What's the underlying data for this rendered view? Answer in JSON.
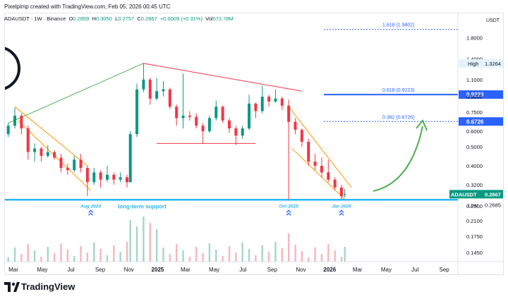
{
  "header": {
    "attribution": "Pixelpimp created with TradingView.com, Feb 05, 2026 00:45 UTC"
  },
  "symbol_bar": {
    "symbol": "ADAUSDT · 1W · Binance",
    "open_label": "O",
    "open": "0.2859",
    "high_label": "H",
    "high": "0.3050",
    "low_label": "L",
    "low": "0.2757",
    "close_label": "C",
    "close": "0.2867",
    "change": "+0.0009 (+0.31%)",
    "vol_label": "Vol",
    "volume": "571.78M"
  },
  "price_axis": {
    "unit": "USDT",
    "ticks": [
      "1.8000",
      "1.4000",
      "1.1000",
      "0.9000",
      "0.7500",
      "0.6000",
      "0.5000",
      "0.4000",
      "0.3200",
      "0.2500",
      "0.2100",
      "0.1750",
      "0.1450"
    ],
    "high_label": "High",
    "high_value": "1.3264",
    "low_label": "Low",
    "low_value": "0.2685",
    "last_symbol": "ADAUSDT",
    "last_value": "0.2867",
    "fib_0_618_value": "0.9223",
    "fib_0_382_value": "0.6726"
  },
  "time_axis": {
    "labels": [
      "Mar",
      "May",
      "Jul",
      "Sep",
      "Nov",
      "2025",
      "Mar",
      "May",
      "Jul",
      "Sep",
      "Nov",
      "2026",
      "Mar",
      "May",
      "Jul",
      "Sep"
    ]
  },
  "annotations": {
    "fib_1618": "1.618 (1.9802)",
    "fib_0618": "0.618 (0.9223)",
    "fib_0382": "0.382 (0.6726)",
    "support_text": "long-term support",
    "touch_1": "Aug 2024",
    "touch_2": "Oct 2025",
    "touch_3": "Jan 2026"
  },
  "footer": {
    "brand": "TradingView"
  },
  "colors": {
    "up": "#089981",
    "down": "#f23645",
    "support": "#29b6f6",
    "fib": "#2962ff",
    "wedge": "#ff9800",
    "triangle_top": "#f23645",
    "uptrend": "#4caf50"
  },
  "chart_data": {
    "type": "candlestick",
    "scale": "log",
    "ylim": [
      0.13,
      2.2
    ],
    "xlim": [
      "2024-02-12",
      "2026-09-30"
    ],
    "series": [
      {
        "name": "ADAUSDT",
        "candles": [
          {
            "t": "2024-02-19",
            "o": 0.58,
            "h": 0.66,
            "l": 0.56,
            "c": 0.64
          },
          {
            "t": "2024-03-04",
            "o": 0.64,
            "h": 0.79,
            "l": 0.62,
            "c": 0.72
          },
          {
            "t": "2024-03-18",
            "o": 0.72,
            "h": 0.74,
            "l": 0.58,
            "c": 0.62
          },
          {
            "t": "2024-04-01",
            "o": 0.62,
            "h": 0.64,
            "l": 0.43,
            "c": 0.47
          },
          {
            "t": "2024-04-15",
            "o": 0.47,
            "h": 0.52,
            "l": 0.42,
            "c": 0.49
          },
          {
            "t": "2024-04-29",
            "o": 0.49,
            "h": 0.5,
            "l": 0.42,
            "c": 0.45
          },
          {
            "t": "2024-05-13",
            "o": 0.45,
            "h": 0.51,
            "l": 0.44,
            "c": 0.47
          },
          {
            "t": "2024-05-27",
            "o": 0.47,
            "h": 0.48,
            "l": 0.43,
            "c": 0.44
          },
          {
            "t": "2024-06-10",
            "o": 0.44,
            "h": 0.46,
            "l": 0.37,
            "c": 0.39
          },
          {
            "t": "2024-06-24",
            "o": 0.39,
            "h": 0.41,
            "l": 0.36,
            "c": 0.38
          },
          {
            "t": "2024-07-08",
            "o": 0.38,
            "h": 0.45,
            "l": 0.37,
            "c": 0.43
          },
          {
            "t": "2024-07-22",
            "o": 0.43,
            "h": 0.46,
            "l": 0.37,
            "c": 0.39
          },
          {
            "t": "2024-08-05",
            "o": 0.39,
            "h": 0.4,
            "l": 0.28,
            "c": 0.33
          },
          {
            "t": "2024-08-19",
            "o": 0.33,
            "h": 0.39,
            "l": 0.32,
            "c": 0.37
          },
          {
            "t": "2024-09-02",
            "o": 0.37,
            "h": 0.38,
            "l": 0.31,
            "c": 0.34
          },
          {
            "t": "2024-09-16",
            "o": 0.34,
            "h": 0.4,
            "l": 0.33,
            "c": 0.36
          },
          {
            "t": "2024-09-30",
            "o": 0.36,
            "h": 0.37,
            "l": 0.32,
            "c": 0.34
          },
          {
            "t": "2024-10-14",
            "o": 0.34,
            "h": 0.37,
            "l": 0.33,
            "c": 0.35
          },
          {
            "t": "2024-10-28",
            "o": 0.35,
            "h": 0.36,
            "l": 0.31,
            "c": 0.33
          },
          {
            "t": "2024-11-04",
            "o": 0.33,
            "h": 0.6,
            "l": 0.33,
            "c": 0.58
          },
          {
            "t": "2024-11-18",
            "o": 0.58,
            "h": 1.05,
            "l": 0.56,
            "c": 0.98
          },
          {
            "t": "2024-12-02",
            "o": 0.98,
            "h": 1.33,
            "l": 0.95,
            "c": 1.1
          },
          {
            "t": "2024-12-16",
            "o": 1.1,
            "h": 1.12,
            "l": 0.82,
            "c": 0.88
          },
          {
            "t": "2024-12-30",
            "o": 0.88,
            "h": 1.12,
            "l": 0.86,
            "c": 0.96
          },
          {
            "t": "2025-01-13",
            "o": 0.96,
            "h": 1.08,
            "l": 0.9,
            "c": 0.98
          },
          {
            "t": "2025-01-27",
            "o": 0.98,
            "h": 1.0,
            "l": 0.78,
            "c": 0.8
          },
          {
            "t": "2025-02-10",
            "o": 0.8,
            "h": 0.82,
            "l": 0.64,
            "c": 0.7
          },
          {
            "t": "2025-02-24",
            "o": 0.7,
            "h": 1.18,
            "l": 0.62,
            "c": 0.72
          },
          {
            "t": "2025-03-10",
            "o": 0.72,
            "h": 0.76,
            "l": 0.68,
            "c": 0.71
          },
          {
            "t": "2025-03-24",
            "o": 0.71,
            "h": 0.74,
            "l": 0.62,
            "c": 0.64
          },
          {
            "t": "2025-04-07",
            "o": 0.64,
            "h": 0.66,
            "l": 0.52,
            "c": 0.6
          },
          {
            "t": "2025-04-21",
            "o": 0.6,
            "h": 0.72,
            "l": 0.59,
            "c": 0.7
          },
          {
            "t": "2025-05-05",
            "o": 0.7,
            "h": 0.86,
            "l": 0.68,
            "c": 0.8
          },
          {
            "t": "2025-05-19",
            "o": 0.8,
            "h": 0.81,
            "l": 0.66,
            "c": 0.68
          },
          {
            "t": "2025-06-02",
            "o": 0.68,
            "h": 0.7,
            "l": 0.59,
            "c": 0.62
          },
          {
            "t": "2025-06-16",
            "o": 0.62,
            "h": 0.64,
            "l": 0.51,
            "c": 0.57
          },
          {
            "t": "2025-06-30",
            "o": 0.57,
            "h": 0.64,
            "l": 0.55,
            "c": 0.62
          },
          {
            "t": "2025-07-14",
            "o": 0.62,
            "h": 0.92,
            "l": 0.61,
            "c": 0.83
          },
          {
            "t": "2025-07-28",
            "o": 0.83,
            "h": 0.84,
            "l": 0.7,
            "c": 0.76
          },
          {
            "t": "2025-08-11",
            "o": 0.76,
            "h": 1.02,
            "l": 0.74,
            "c": 0.9
          },
          {
            "t": "2025-08-25",
            "o": 0.9,
            "h": 0.92,
            "l": 0.8,
            "c": 0.85
          },
          {
            "t": "2025-09-08",
            "o": 0.85,
            "h": 0.98,
            "l": 0.84,
            "c": 0.88
          },
          {
            "t": "2025-09-22",
            "o": 0.88,
            "h": 0.9,
            "l": 0.77,
            "c": 0.81
          },
          {
            "t": "2025-10-06",
            "o": 0.81,
            "h": 0.87,
            "l": 0.27,
            "c": 0.67
          },
          {
            "t": "2025-10-20",
            "o": 0.67,
            "h": 0.7,
            "l": 0.58,
            "c": 0.61
          },
          {
            "t": "2025-11-03",
            "o": 0.61,
            "h": 0.62,
            "l": 0.5,
            "c": 0.53
          },
          {
            "t": "2025-11-17",
            "o": 0.53,
            "h": 0.55,
            "l": 0.4,
            "c": 0.42
          },
          {
            "t": "2025-12-01",
            "o": 0.42,
            "h": 0.46,
            "l": 0.38,
            "c": 0.4
          },
          {
            "t": "2025-12-15",
            "o": 0.4,
            "h": 0.44,
            "l": 0.35,
            "c": 0.37
          },
          {
            "t": "2025-12-29",
            "o": 0.37,
            "h": 0.43,
            "l": 0.33,
            "c": 0.34
          },
          {
            "t": "2026-01-12",
            "o": 0.34,
            "h": 0.35,
            "l": 0.3,
            "c": 0.31
          },
          {
            "t": "2026-01-26",
            "o": 0.31,
            "h": 0.32,
            "l": 0.27,
            "c": 0.28
          },
          {
            "t": "2026-02-02",
            "o": 0.2859,
            "h": 0.305,
            "l": 0.2757,
            "c": 0.2867
          }
        ]
      }
    ],
    "levels": {
      "long_term_support": 0.2685,
      "fib_0382": 0.6726,
      "fib_0618": 0.9223,
      "fib_1618": 1.9802
    },
    "grid": false,
    "legend": "none"
  }
}
